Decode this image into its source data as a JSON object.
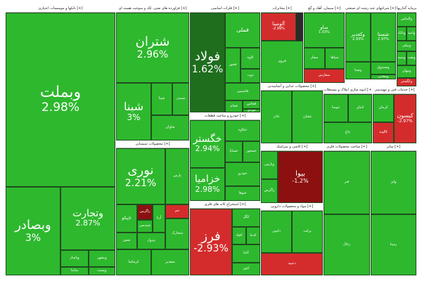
{
  "sectors": [
    {
      "id": "banks",
      "title": "بانکها و موسسات اعتباری [+]",
      "tiles": [
        {
          "name": "وبملت",
          "change": "2.98%",
          "color": "up"
        },
        {
          "name": "وتجارت",
          "change": "2.87%",
          "color": "up"
        },
        {
          "name": "وبصادر",
          "change": "3%",
          "color": "up"
        },
        {
          "name": "وپاسار",
          "change": "",
          "color": "up"
        },
        {
          "name": "وبشهر",
          "change": "",
          "color": "up"
        },
        {
          "name": "ساینا",
          "change": "",
          "color": "up"
        },
        {
          "name": "وپست",
          "change": "",
          "color": "up"
        },
        {
          "name": "وسینا",
          "change": "",
          "color": "up"
        }
      ]
    },
    {
      "id": "oil",
      "title": "فراورده های نفتی، کک و سوخت هسته ای [+]",
      "tiles": [
        {
          "name": "شتران",
          "change": "2.96%",
          "color": "up"
        },
        {
          "name": "شبنا",
          "change": "3%",
          "color": "up"
        },
        {
          "name": "شپنا",
          "change": "",
          "color": "up"
        },
        {
          "name": "شبندر",
          "change": "",
          "color": "up"
        },
        {
          "name": "شاوان",
          "change": "",
          "color": "up"
        }
      ]
    },
    {
      "id": "chemical",
      "title": "محصولات شیمیایی [+]",
      "tiles": [
        {
          "name": "نوری",
          "change": "2.21%",
          "color": "up"
        },
        {
          "name": "پارس",
          "change": "",
          "color": "up"
        },
        {
          "name": "تاپیکو",
          "change": "",
          "color": "up"
        },
        {
          "name": "زاگرس",
          "change": "",
          "color": "ddown"
        },
        {
          "name": "شپدیس",
          "change": "",
          "color": "up"
        },
        {
          "name": "آریا",
          "change": "",
          "color": "up"
        },
        {
          "name": "جم",
          "change": "",
          "color": "down"
        },
        {
          "name": "شفن",
          "change": "",
          "color": "up"
        },
        {
          "name": "پترول",
          "change": "",
          "color": "up"
        },
        {
          "name": "شخارک",
          "change": "",
          "color": "up"
        },
        {
          "name": "کرماشا",
          "change": "",
          "color": "up"
        },
        {
          "name": "شغدیر",
          "change": "",
          "color": "up"
        }
      ]
    },
    {
      "id": "metals",
      "title": "فلزات اساسی [+]",
      "tiles": [
        {
          "name": "فولاد",
          "change": "1.62%",
          "color": "dgreen"
        },
        {
          "name": "فملی",
          "change": "",
          "color": "up"
        },
        {
          "name": "فخوز",
          "change": "",
          "color": "up"
        },
        {
          "name": "کاوه",
          "change": "",
          "color": "up"
        },
        {
          "name": "ذوب",
          "change": "",
          "color": "up"
        },
        {
          "name": "فاسمین",
          "change": "",
          "color": "up"
        },
        {
          "name": "فجام",
          "change": "",
          "color": "up"
        },
        {
          "name": "فخاس",
          "change": "",
          "color": "up"
        },
        {
          "name": "فولای",
          "change": "",
          "color": "up"
        }
      ]
    },
    {
      "id": "auto",
      "title": "خودرو و ساخت قطعات [+]",
      "tiles": [
        {
          "name": "خگستر",
          "change": "2.94%",
          "color": "up"
        },
        {
          "name": "خزامیا",
          "change": "2.98%",
          "color": "up"
        },
        {
          "name": "خکاوه",
          "change": "",
          "color": "up"
        },
        {
          "name": "خساپا",
          "change": "",
          "color": "up"
        },
        {
          "name": "خمحور",
          "change": "",
          "color": "up"
        },
        {
          "name": "خودرو",
          "change": "",
          "color": "up"
        },
        {
          "name": "ختوقا",
          "change": "",
          "color": "up"
        }
      ]
    },
    {
      "id": "mining",
      "title": "استخراج کانه های فلزی [+]",
      "tiles": [
        {
          "name": "فرز",
          "change": "-2.93%",
          "color": "down"
        },
        {
          "name": "کگل",
          "change": "",
          "color": "up"
        },
        {
          "name": "کچاد",
          "change": "",
          "color": "up"
        },
        {
          "name": "کدما",
          "change": "",
          "color": "up"
        },
        {
          "name": "کاما",
          "change": "",
          "color": "up"
        },
        {
          "name": "کنور",
          "change": "",
          "color": "up"
        }
      ]
    },
    {
      "id": "telecom",
      "title": "مخابرات [+]",
      "tiles": [
        {
          "name": "آلومینا",
          "change": "-2.99%",
          "color": "down"
        },
        {
          "name": "فروی",
          "change": "",
          "color": "up"
        }
      ]
    },
    {
      "id": "cement",
      "title": "سیمان، آهک و گچ [+]",
      "tiles": [
        {
          "name": "ساو",
          "change": "1.03%",
          "color": "up"
        },
        {
          "name": "سفار",
          "change": "",
          "color": "up"
        },
        {
          "name": "سپاها",
          "change": "",
          "color": "up"
        },
        {
          "name": "سفارس",
          "change": "",
          "color": "down"
        }
      ]
    },
    {
      "id": "holding",
      "title": "شرکتهای چند رشته ای صنعتی [+]",
      "tiles": [
        {
          "name": "وکغدیر",
          "change": "2.93%",
          "color": "up"
        },
        {
          "name": "وصنا",
          "change": "",
          "color": "up"
        },
        {
          "name": "شستا",
          "change": "2.97%",
          "color": "up"
        },
        {
          "name": "وصندوق",
          "change": "",
          "color": "up"
        },
        {
          "name": "ومعادن",
          "change": "",
          "color": "up"
        }
      ]
    },
    {
      "id": "invest",
      "title": "سرمایه گذاریها [+]",
      "tiles": [
        {
          "name": "والماس",
          "change": "",
          "color": "up"
        },
        {
          "name": "وبانک",
          "change": "",
          "color": "up"
        },
        {
          "name": "وامید",
          "change": "",
          "color": "up"
        },
        {
          "name": "ونیکی",
          "change": "",
          "color": "up"
        },
        {
          "name": "وسپه",
          "change": "",
          "color": "up"
        },
        {
          "name": "ونفت",
          "change": "",
          "color": "up"
        },
        {
          "name": "ومهان",
          "change": "",
          "color": "up"
        },
        {
          "name": "وکگستر",
          "change": "",
          "color": "down"
        }
      ]
    },
    {
      "id": "services",
      "title": "خدمات فنی و مهندسی [+]",
      "tiles": [
        {
          "name": "کیسون",
          "change": "-2.97%",
          "color": "down"
        },
        {
          "name": "کرمان",
          "change": "",
          "color": "up"
        },
        {
          "name": "کالوند",
          "change": "",
          "color": "down"
        }
      ]
    },
    {
      "id": "realestate",
      "title": "انبوه سازی املاک و مستغلات [+]",
      "tiles": [
        {
          "name": "ثنوسا",
          "change": "",
          "color": "up"
        },
        {
          "name": "ثامان",
          "change": "",
          "color": "up"
        },
        {
          "name": "ثباغ",
          "change": "",
          "color": "up"
        }
      ]
    },
    {
      "id": "food",
      "title": "محصولات غذایی و آشامیدنی [+]",
      "tiles": [
        {
          "name": "غاذر",
          "change": "",
          "color": "up"
        },
        {
          "name": "غشان",
          "change": "",
          "color": "up"
        }
      ]
    },
    {
      "id": "pharma",
      "title": "مواد و محصولات دارویی [+]",
      "tiles": [
        {
          "name": "دامین",
          "change": "",
          "color": "up"
        },
        {
          "name": "برکت",
          "change": "",
          "color": "up"
        },
        {
          "name": "دعبید",
          "change": "",
          "color": "down"
        }
      ]
    },
    {
      "id": "tiles",
      "title": "کاشی و سرامیک [+]",
      "tiles": [
        {
          "name": "بیوا",
          "change": "-1.2%",
          "color": "ddown"
        },
        {
          "name": "وپارس",
          "change": "",
          "color": "up"
        },
        {
          "name": "زاگرس",
          "change": "",
          "color": "up"
        }
      ]
    },
    {
      "id": "misc1",
      "title": "ساخت محصولات فلزی [+]",
      "tiles": [
        {
          "name": "فنر",
          "change": "",
          "color": "up"
        },
        {
          "name": "زغال",
          "change": "",
          "color": "up"
        }
      ]
    },
    {
      "id": "misc2",
      "title": "سایر [+]",
      "tiles": [
        {
          "name": "ولیز",
          "change": "",
          "color": "up"
        },
        {
          "name": "رمپنا",
          "change": "",
          "color": "up"
        }
      ]
    }
  ]
}
